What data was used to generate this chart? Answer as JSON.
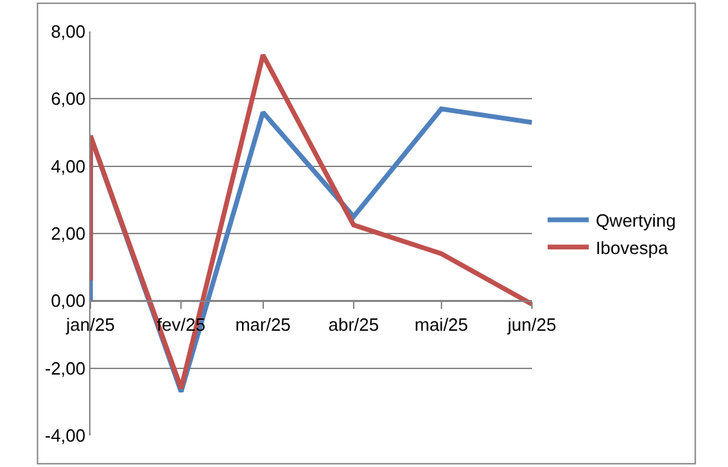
{
  "chart_data": {
    "type": "line",
    "x": [
      "2025-01",
      "2025-01",
      "2025-02",
      "2025-03",
      "2025-04",
      "2025-05",
      "2025-06"
    ],
    "series": [
      {
        "name": "Qwertying",
        "color": "#4f81bd",
        "values": [
          0.0,
          4.9,
          -2.7,
          5.6,
          2.5,
          5.7,
          5.3
        ]
      },
      {
        "name": "Ibovespa",
        "color": "#c0504d",
        "values": [
          0.6,
          4.9,
          -2.6,
          7.3,
          2.25,
          1.4,
          -0.1
        ]
      }
    ],
    "xlim": [
      "2025-01",
      "2025-06"
    ],
    "xticks": [
      {
        "value": "2025-01",
        "label": "jan/25"
      },
      {
        "value": "2025-02",
        "label": "fev/25"
      },
      {
        "value": "2025-03",
        "label": "mar/25"
      },
      {
        "value": "2025-04",
        "label": "abr/25"
      },
      {
        "value": "2025-05",
        "label": "mai/25"
      },
      {
        "value": "2025-06",
        "label": "jun/25"
      }
    ],
    "ylim": [
      -4,
      8
    ],
    "yticks": [
      {
        "value": -4,
        "label": "-4,00"
      },
      {
        "value": -2,
        "label": "-2,00"
      },
      {
        "value": 0,
        "label": "0,00"
      },
      {
        "value": 2,
        "label": "2,00"
      },
      {
        "value": 4,
        "label": "4,00"
      },
      {
        "value": 6,
        "label": "6,00"
      },
      {
        "value": 8,
        "label": "8,00"
      }
    ],
    "grid": "y",
    "legend": "right",
    "marker": "none",
    "line_style": "solid"
  }
}
